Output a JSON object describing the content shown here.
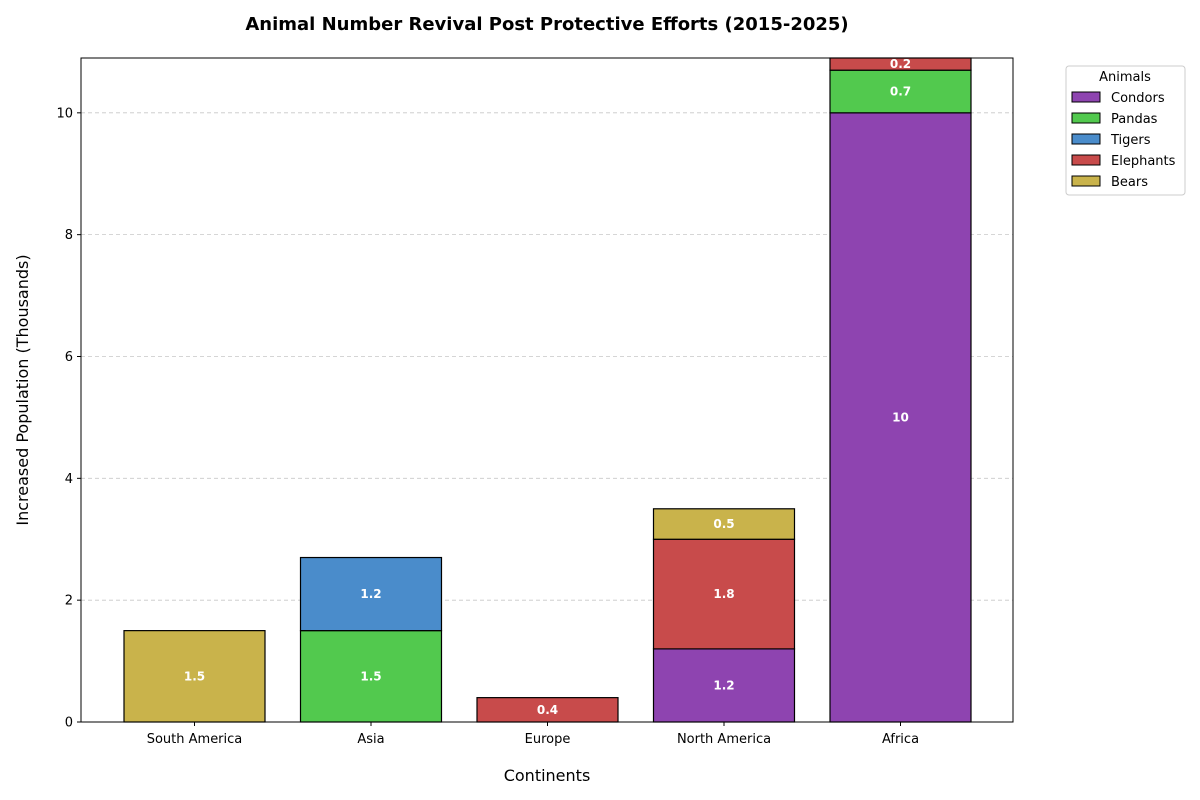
{
  "chart_data": {
    "type": "bar",
    "stacked": true,
    "title": "Animal Number Revival Post Protective Efforts (2015-2025)",
    "xlabel": "Continents",
    "ylabel": "Increased Population (Thousands)",
    "categories": [
      "South America",
      "Asia",
      "Europe",
      "North America",
      "Africa"
    ],
    "ylim": [
      0,
      10.9
    ],
    "yticks": [
      0,
      2,
      4,
      6,
      8,
      10
    ],
    "grid": "y-dashed",
    "legend": {
      "title": "Animals",
      "placement": "outside-top-right"
    },
    "stack_order": [
      "Condors",
      "Pandas",
      "Tigers",
      "Elephants",
      "Bears"
    ],
    "series": [
      {
        "name": "Condors",
        "color": "#8e44b0",
        "values": [
          0,
          0,
          0,
          1.2,
          10
        ]
      },
      {
        "name": "Pandas",
        "color": "#52c94e",
        "values": [
          0,
          1.5,
          0,
          0,
          0.7
        ]
      },
      {
        "name": "Tigers",
        "color": "#4a8ccb",
        "values": [
          0,
          1.2,
          0,
          0,
          0
        ]
      },
      {
        "name": "Elephants",
        "color": "#c84b4b",
        "values": [
          0,
          0,
          0.4,
          1.8,
          0.2
        ]
      },
      {
        "name": "Bears",
        "color": "#c9b34b",
        "values": [
          1.5,
          0,
          0,
          0.5,
          0
        ]
      }
    ]
  }
}
